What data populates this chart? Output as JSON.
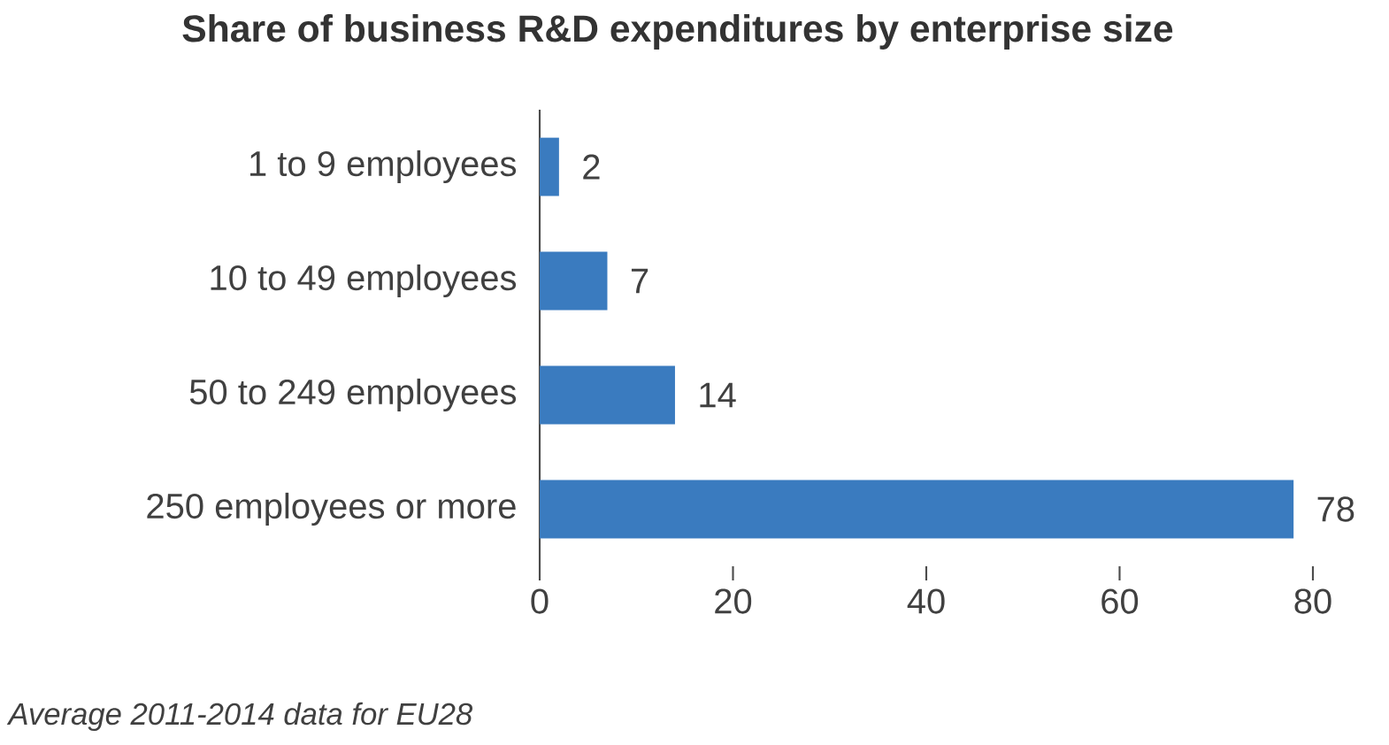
{
  "chart_data": {
    "type": "bar",
    "orientation": "horizontal",
    "title": "Share of business R&D expenditures by enterprise size",
    "categories": [
      "1 to 9 employees",
      "10 to 49 employees",
      "50 to 249 employees",
      "250 employees or more"
    ],
    "values": [
      2,
      7,
      14,
      78
    ],
    "color": "#3a7bbf",
    "data_labels": true,
    "xlim": [
      0,
      80
    ],
    "xticks": [
      0,
      20,
      40,
      60,
      80
    ],
    "annotations": [
      "Average 2011-2014 data for EU28"
    ]
  }
}
